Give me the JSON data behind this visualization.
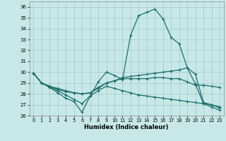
{
  "xlabel": "Humidex (Indice chaleur)",
  "xlim": [
    -0.5,
    23.5
  ],
  "ylim": [
    26,
    36.5
  ],
  "yticks": [
    26,
    27,
    28,
    29,
    30,
    31,
    32,
    33,
    34,
    35,
    36
  ],
  "xticks": [
    0,
    1,
    2,
    3,
    4,
    5,
    6,
    7,
    8,
    9,
    10,
    11,
    12,
    13,
    14,
    15,
    16,
    17,
    18,
    19,
    20,
    21,
    22,
    23
  ],
  "bg_color": "#c8e8e8",
  "grid_color": "#a0c8c8",
  "line_color": "#1a6e6a",
  "lines": [
    {
      "x": [
        0,
        1,
        2,
        3,
        4,
        5,
        6,
        7,
        8,
        9,
        10,
        11,
        12,
        13,
        14,
        15,
        16,
        17,
        18,
        19,
        20,
        21,
        22,
        23
      ],
      "y": [
        29.9,
        29.0,
        28.6,
        28.1,
        27.6,
        27.3,
        26.3,
        27.8,
        29.1,
        30.0,
        29.7,
        29.3,
        33.4,
        35.2,
        35.5,
        35.8,
        34.9,
        33.2,
        32.6,
        30.4,
        28.9,
        27.1,
        26.8,
        26.5
      ]
    },
    {
      "x": [
        0,
        1,
        2,
        3,
        4,
        5,
        6,
        7,
        8,
        9,
        10,
        11,
        12,
        13,
        14,
        15,
        16,
        17,
        18,
        19,
        20,
        21,
        22,
        23
      ],
      "y": [
        29.9,
        29.0,
        28.7,
        28.4,
        28.2,
        28.1,
        28.0,
        28.1,
        28.6,
        29.0,
        29.2,
        29.5,
        29.6,
        29.7,
        29.8,
        29.9,
        30.0,
        30.1,
        30.2,
        30.4,
        29.8,
        27.2,
        27.0,
        26.7
      ]
    },
    {
      "x": [
        0,
        1,
        2,
        3,
        4,
        5,
        6,
        7,
        8,
        9,
        10,
        11,
        12,
        13,
        14,
        15,
        16,
        17,
        18,
        19,
        20,
        21,
        22,
        23
      ],
      "y": [
        29.9,
        29.0,
        28.7,
        28.5,
        28.3,
        28.1,
        28.0,
        28.1,
        28.5,
        29.0,
        29.2,
        29.4,
        29.4,
        29.4,
        29.4,
        29.5,
        29.5,
        29.4,
        29.4,
        29.1,
        28.8,
        28.8,
        28.7,
        28.6
      ]
    },
    {
      "x": [
        0,
        1,
        2,
        3,
        4,
        5,
        6,
        7,
        8,
        9,
        10,
        11,
        12,
        13,
        14,
        15,
        16,
        17,
        18,
        19,
        20,
        21,
        22,
        23
      ],
      "y": [
        29.9,
        29.0,
        28.6,
        28.3,
        27.9,
        27.5,
        27.1,
        27.8,
        28.3,
        28.7,
        28.5,
        28.3,
        28.1,
        27.9,
        27.8,
        27.7,
        27.6,
        27.5,
        27.4,
        27.3,
        27.2,
        27.1,
        27.0,
        26.8
      ]
    }
  ]
}
